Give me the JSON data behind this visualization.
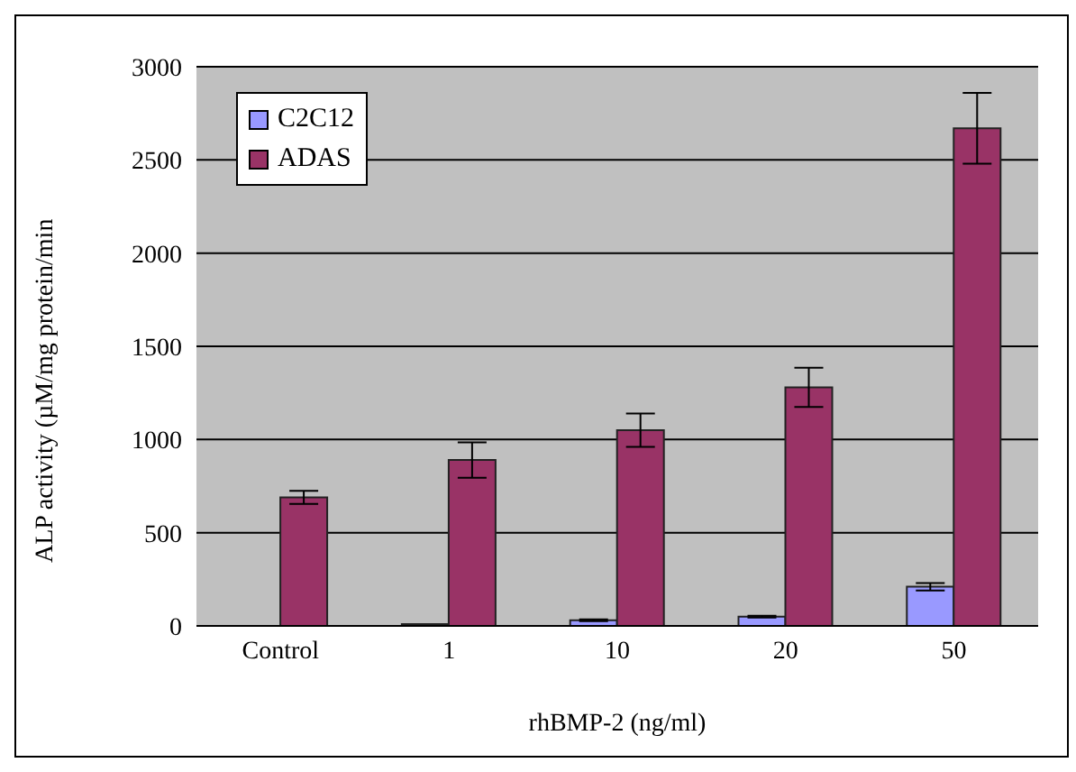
{
  "chart_data": {
    "type": "bar",
    "xlabel": "rhBMP-2 (ng/ml)",
    "ylabel": "ALP activity (µM/mg protein/min",
    "categories": [
      "Control",
      "1",
      "10",
      "20",
      "50"
    ],
    "series": [
      {
        "name": "C2C12",
        "color": "#9999ff",
        "values": [
          0,
          10,
          30,
          50,
          210
        ],
        "errors": [
          null,
          null,
          5,
          5,
          20
        ]
      },
      {
        "name": "ADAS",
        "color": "#993366",
        "values": [
          690,
          890,
          1050,
          1280,
          2670
        ],
        "errors": [
          35,
          95,
          90,
          105,
          190
        ]
      }
    ],
    "ylim": [
      0,
      3000
    ],
    "yticks": [
      0,
      500,
      1000,
      1500,
      2000,
      2500,
      3000
    ],
    "grid": "y",
    "legend": "top left"
  }
}
